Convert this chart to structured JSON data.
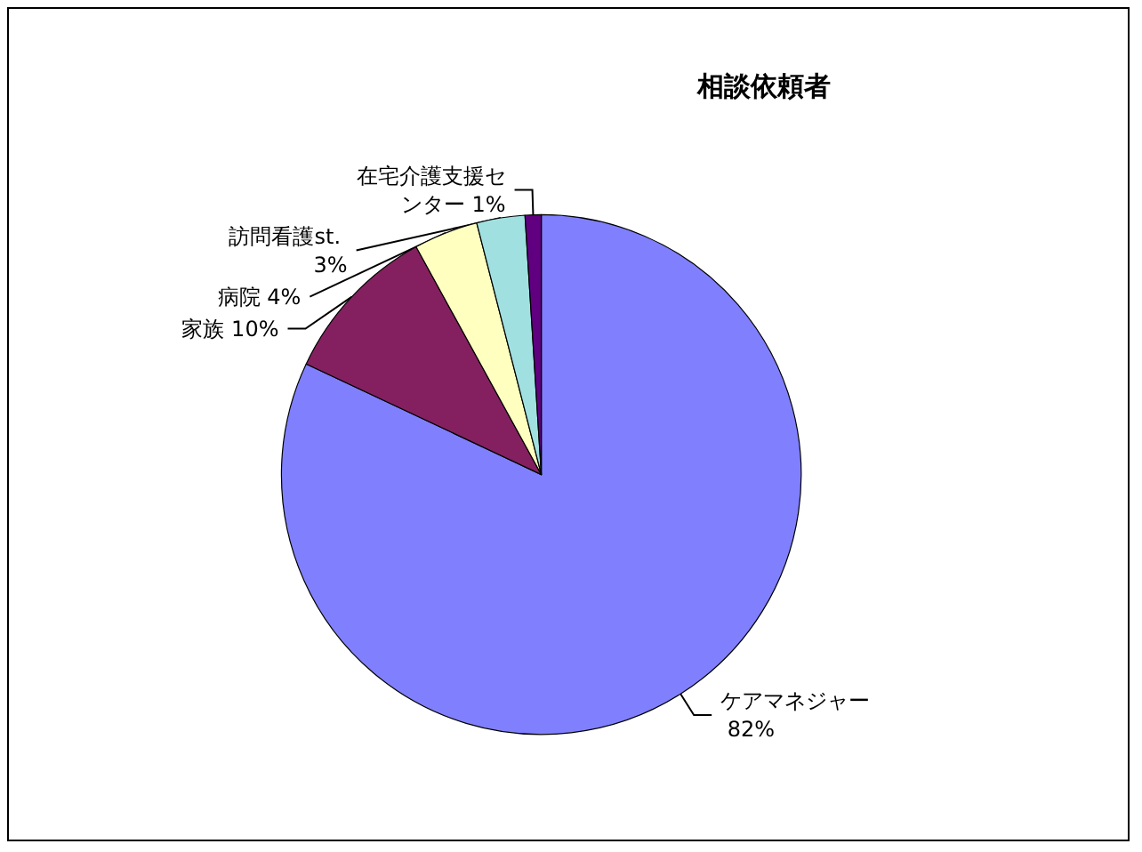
{
  "chart_data": {
    "type": "pie",
    "title": "相談依頼者",
    "categories": [
      "ケアマネジャー",
      "家族",
      "病院",
      "訪問看護st.",
      "在宅介護支援センター"
    ],
    "values": [
      82,
      10,
      4,
      3,
      1
    ],
    "value_labels": [
      "82%",
      "10%",
      "4%",
      "3%",
      "1%"
    ],
    "colors": [
      "#8080ff",
      "#842060",
      "#ffffc0",
      "#a0e0e0",
      "#600080"
    ],
    "legend": false
  }
}
